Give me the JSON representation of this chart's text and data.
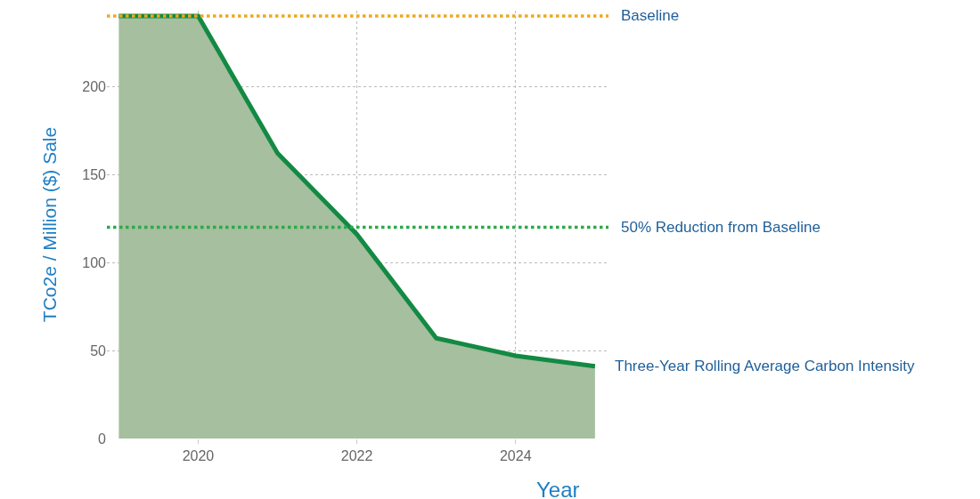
{
  "chart_data": {
    "type": "area",
    "xlabel": "Year",
    "ylabel": "TCo2e / Million ($) Sale",
    "x": [
      2019,
      2020,
      2021,
      2022,
      2023,
      2024,
      2025
    ],
    "series": [
      {
        "name": "Three-Year Rolling Average Carbon Intensity",
        "color": "#138a43",
        "values": [
          240,
          240,
          162,
          116,
          57,
          47,
          41
        ]
      }
    ],
    "xlim": [
      2018.85,
      2025.17
    ],
    "xticks": [
      2020,
      2022,
      2024
    ],
    "ylim": [
      0,
      243
    ],
    "yticks": [
      0,
      50,
      100,
      150,
      200
    ],
    "ref_lines": [
      {
        "axis": "y",
        "value": 240,
        "label": "Baseline",
        "color": "#f0a81e",
        "line_style": "dotted"
      },
      {
        "axis": "y",
        "value": 120,
        "label": "50% Reduction from Baseline",
        "color": "#2ea84a",
        "line_style": "dotted"
      }
    ],
    "grid": true,
    "legend": false
  }
}
